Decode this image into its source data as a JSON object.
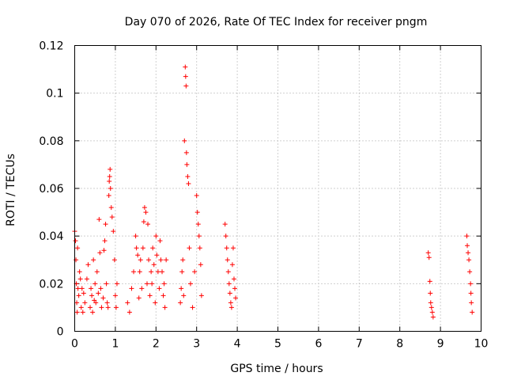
{
  "chart_data": {
    "type": "scatter",
    "title": "Day 070 of 2026, Rate Of TEC Index for receiver pngm",
    "xlabel": "GPS time / hours",
    "ylabel": "ROTI / TECUs",
    "xlim": [
      0,
      10
    ],
    "ylim": [
      0,
      0.12
    ],
    "x_ticks": [
      "0",
      "1",
      "2",
      "3",
      "4",
      "5",
      "6",
      "7",
      "8",
      "9",
      "10"
    ],
    "y_ticks": [
      "0",
      "0.02",
      "0.04",
      "0.06",
      "0.08",
      "0.1",
      "0.12"
    ],
    "grid": true,
    "marker": "+",
    "marker_color": "#ff0000",
    "series": [
      {
        "name": "ROTI",
        "x": [
          0.0,
          0.02,
          0.03,
          0.04,
          0.05,
          0.06,
          0.07,
          0.08,
          0.1,
          0.12,
          0.14,
          0.16,
          0.18,
          0.2,
          0.22,
          0.25,
          0.3,
          0.33,
          0.38,
          0.4,
          0.42,
          0.44,
          0.46,
          0.48,
          0.5,
          0.52,
          0.55,
          0.58,
          0.6,
          0.62,
          0.64,
          0.66,
          0.7,
          0.72,
          0.74,
          0.76,
          0.78,
          0.8,
          0.82,
          0.84,
          0.85,
          0.86,
          0.87,
          0.88,
          0.9,
          0.92,
          0.95,
          0.98,
          1.0,
          1.02,
          1.04,
          1.3,
          1.35,
          1.4,
          1.45,
          1.5,
          1.52,
          1.55,
          1.58,
          1.6,
          1.62,
          1.65,
          1.68,
          1.7,
          1.72,
          1.75,
          1.78,
          1.8,
          1.82,
          1.85,
          1.88,
          1.9,
          1.92,
          1.95,
          1.98,
          2.0,
          2.02,
          2.05,
          2.08,
          2.1,
          2.12,
          2.15,
          2.18,
          2.2,
          2.22,
          2.25,
          2.6,
          2.62,
          2.64,
          2.66,
          2.68,
          2.7,
          2.72,
          2.73,
          2.74,
          2.75,
          2.76,
          2.78,
          2.8,
          2.82,
          2.85,
          2.9,
          2.95,
          3.0,
          3.02,
          3.04,
          3.06,
          3.08,
          3.1,
          3.12,
          3.7,
          3.72,
          3.74,
          3.76,
          3.78,
          3.8,
          3.82,
          3.84,
          3.86,
          3.88,
          3.9,
          3.92,
          3.94,
          3.96,
          8.7,
          8.72,
          8.74,
          8.75,
          8.76,
          8.78,
          8.8,
          8.82,
          9.65,
          9.66,
          9.68,
          9.7,
          9.72,
          9.74,
          9.75,
          9.76,
          9.78
        ],
        "y": [
          0.042,
          0.038,
          0.03,
          0.02,
          0.012,
          0.008,
          0.035,
          0.018,
          0.015,
          0.025,
          0.022,
          0.01,
          0.018,
          0.008,
          0.016,
          0.012,
          0.022,
          0.028,
          0.01,
          0.018,
          0.015,
          0.008,
          0.03,
          0.013,
          0.02,
          0.012,
          0.025,
          0.016,
          0.047,
          0.033,
          0.018,
          0.01,
          0.014,
          0.034,
          0.038,
          0.045,
          0.02,
          0.012,
          0.01,
          0.057,
          0.063,
          0.065,
          0.068,
          0.06,
          0.052,
          0.048,
          0.042,
          0.03,
          0.015,
          0.01,
          0.02,
          0.012,
          0.008,
          0.018,
          0.025,
          0.04,
          0.035,
          0.032,
          0.014,
          0.025,
          0.03,
          0.018,
          0.035,
          0.046,
          0.052,
          0.05,
          0.02,
          0.045,
          0.03,
          0.015,
          0.025,
          0.02,
          0.035,
          0.028,
          0.012,
          0.04,
          0.032,
          0.025,
          0.018,
          0.038,
          0.03,
          0.025,
          0.015,
          0.02,
          0.01,
          0.03,
          0.012,
          0.018,
          0.025,
          0.03,
          0.015,
          0.08,
          0.111,
          0.107,
          0.103,
          0.075,
          0.07,
          0.065,
          0.062,
          0.035,
          0.02,
          0.01,
          0.025,
          0.057,
          0.05,
          0.045,
          0.04,
          0.035,
          0.028,
          0.015,
          0.045,
          0.04,
          0.035,
          0.03,
          0.025,
          0.02,
          0.016,
          0.012,
          0.01,
          0.028,
          0.035,
          0.022,
          0.018,
          0.014,
          0.033,
          0.031,
          0.021,
          0.016,
          0.012,
          0.01,
          0.008,
          0.006,
          0.04,
          0.036,
          0.033,
          0.03,
          0.025,
          0.02,
          0.016,
          0.012,
          0.008
        ]
      }
    ]
  }
}
